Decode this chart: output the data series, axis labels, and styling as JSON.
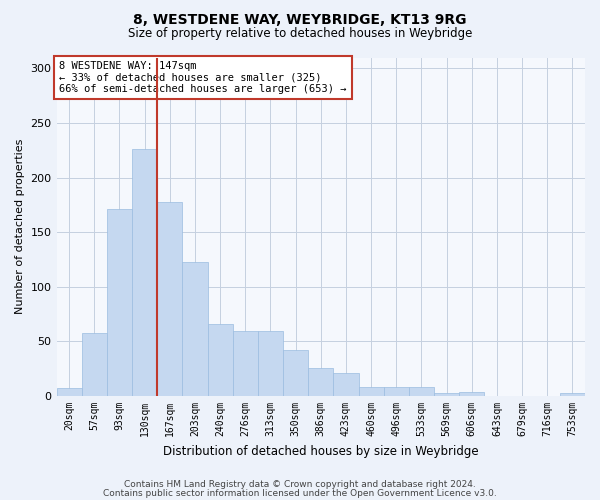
{
  "title1": "8, WESTDENE WAY, WEYBRIDGE, KT13 9RG",
  "title2": "Size of property relative to detached houses in Weybridge",
  "xlabel": "Distribution of detached houses by size in Weybridge",
  "ylabel": "Number of detached properties",
  "categories": [
    "20sqm",
    "57sqm",
    "93sqm",
    "130sqm",
    "167sqm",
    "203sqm",
    "240sqm",
    "276sqm",
    "313sqm",
    "350sqm",
    "386sqm",
    "423sqm",
    "460sqm",
    "496sqm",
    "533sqm",
    "569sqm",
    "606sqm",
    "643sqm",
    "679sqm",
    "716sqm",
    "753sqm"
  ],
  "values": [
    7,
    58,
    171,
    226,
    178,
    123,
    66,
    60,
    60,
    42,
    26,
    21,
    8,
    8,
    8,
    3,
    4,
    0,
    0,
    0,
    3
  ],
  "bar_color": "#c5d8f0",
  "bar_edge_color": "#9bbce0",
  "vline_x": 3.5,
  "vline_color": "#c0392b",
  "annotation_text": "8 WESTDENE WAY: 147sqm\n← 33% of detached houses are smaller (325)\n66% of semi-detached houses are larger (653) →",
  "annotation_box_color": "#ffffff",
  "annotation_box_edge": "#c0392b",
  "ylim": [
    0,
    310
  ],
  "yticks": [
    0,
    50,
    100,
    150,
    200,
    250,
    300
  ],
  "footer1": "Contains HM Land Registry data © Crown copyright and database right 2024.",
  "footer2": "Contains public sector information licensed under the Open Government Licence v3.0.",
  "bg_color": "#edf2fa",
  "plot_bg_color": "#f5f8fd"
}
